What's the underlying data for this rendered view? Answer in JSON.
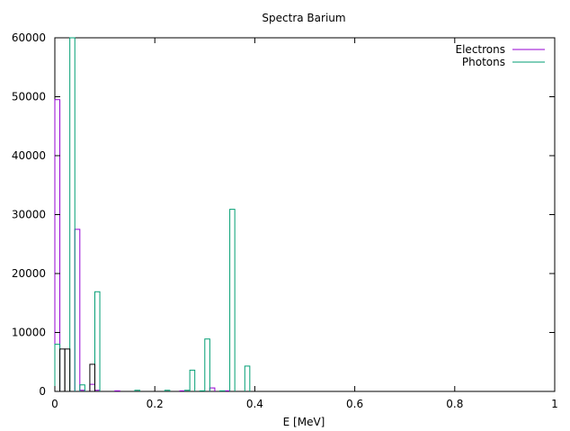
{
  "chart_data": {
    "type": "histogram-step",
    "title": "Spectra Barium",
    "xlabel": "E [MeV]",
    "ylabel": "",
    "xlim": [
      0,
      1
    ],
    "ylim": [
      0,
      60000
    ],
    "xticks": [
      {
        "value": 0,
        "label": "0"
      },
      {
        "value": 0.2,
        "label": "0.2"
      },
      {
        "value": 0.4,
        "label": "0.4"
      },
      {
        "value": 0.6,
        "label": "0.6"
      },
      {
        "value": 0.8,
        "label": "0.8"
      },
      {
        "value": 1,
        "label": "1"
      }
    ],
    "yticks": [
      {
        "value": 0,
        "label": "0"
      },
      {
        "value": 10000,
        "label": "10000"
      },
      {
        "value": 20000,
        "label": "20000"
      },
      {
        "value": 30000,
        "label": "30000"
      },
      {
        "value": 40000,
        "label": "40000"
      },
      {
        "value": 50000,
        "label": "50000"
      },
      {
        "value": 60000,
        "label": "60000"
      }
    ],
    "grid": false,
    "legend_position": "top-right",
    "bin_width": 0.01,
    "series": [
      {
        "name": "Electrons",
        "color": "#9400d3",
        "bins": [
          {
            "x0": 0.0,
            "y": 49500
          },
          {
            "x0": 0.01,
            "y": 0
          },
          {
            "x0": 0.02,
            "y": 0
          },
          {
            "x0": 0.03,
            "y": 0
          },
          {
            "x0": 0.04,
            "y": 27500
          },
          {
            "x0": 0.05,
            "y": 200
          },
          {
            "x0": 0.06,
            "y": 0
          },
          {
            "x0": 0.07,
            "y": 1200
          },
          {
            "x0": 0.08,
            "y": 200
          },
          {
            "x0": 0.09,
            "y": 0
          },
          {
            "x0": 0.12,
            "y": 100
          },
          {
            "x0": 0.25,
            "y": 100
          },
          {
            "x0": 0.31,
            "y": 600
          },
          {
            "x0": 0.34,
            "y": 100
          },
          {
            "x0": 0.35,
            "y": 0
          }
        ]
      },
      {
        "name": "Photons",
        "color": "#009e73",
        "bins": [
          {
            "x0": 0.0,
            "y": 8000
          },
          {
            "x0": 0.01,
            "y": 0
          },
          {
            "x0": 0.02,
            "y": 0
          },
          {
            "x0": 0.03,
            "y": 60000
          },
          {
            "x0": 0.04,
            "y": 0
          },
          {
            "x0": 0.05,
            "y": 1100
          },
          {
            "x0": 0.06,
            "y": 0
          },
          {
            "x0": 0.07,
            "y": 0
          },
          {
            "x0": 0.08,
            "y": 16900
          },
          {
            "x0": 0.09,
            "y": 0
          },
          {
            "x0": 0.16,
            "y": 200
          },
          {
            "x0": 0.22,
            "y": 200
          },
          {
            "x0": 0.26,
            "y": 200
          },
          {
            "x0": 0.27,
            "y": 3600
          },
          {
            "x0": 0.28,
            "y": 0
          },
          {
            "x0": 0.29,
            "y": 100
          },
          {
            "x0": 0.3,
            "y": 8900
          },
          {
            "x0": 0.31,
            "y": 0
          },
          {
            "x0": 0.33,
            "y": 100
          },
          {
            "x0": 0.35,
            "y": 30900
          },
          {
            "x0": 0.36,
            "y": 0
          },
          {
            "x0": 0.38,
            "y": 4300
          },
          {
            "x0": 0.39,
            "y": 0
          }
        ]
      },
      {
        "name": "",
        "color": "#000000",
        "bins": [
          {
            "x0": 0.0,
            "y": 0
          },
          {
            "x0": 0.01,
            "y": 7200
          },
          {
            "x0": 0.02,
            "y": 7200
          },
          {
            "x0": 0.03,
            "y": 0
          },
          {
            "x0": 0.06,
            "y": 0
          },
          {
            "x0": 0.07,
            "y": 4600
          },
          {
            "x0": 0.08,
            "y": 0
          }
        ]
      }
    ]
  }
}
